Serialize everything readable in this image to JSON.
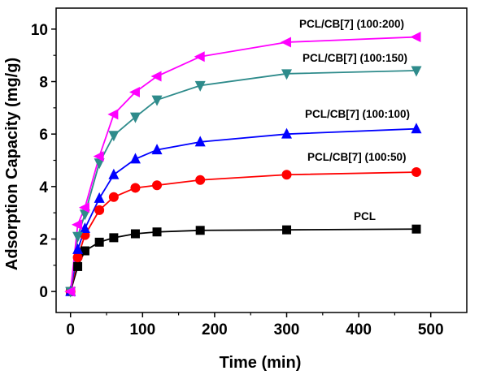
{
  "chart_data": {
    "type": "line",
    "xlabel": "Time (min)",
    "ylabel": "Adsorption Capacity (mg/g)",
    "xlim": [
      -20,
      550
    ],
    "ylim": [
      -0.8,
      10.8
    ],
    "xticks": [
      0,
      100,
      200,
      300,
      400,
      500
    ],
    "yticks": [
      0,
      2,
      4,
      6,
      8,
      10
    ],
    "x": [
      0,
      10,
      20,
      40,
      60,
      90,
      120,
      180,
      300,
      480
    ],
    "series": [
      {
        "name": "PCL",
        "label": "PCL",
        "color": "#000000",
        "marker": "square",
        "values": [
          0,
          0.95,
          1.55,
          1.88,
          2.05,
          2.2,
          2.27,
          2.33,
          2.35,
          2.38
        ]
      },
      {
        "name": "PCL/CB[7] (100:50)",
        "label": "PCL/CB[7] (100:50)",
        "color": "#ff0000",
        "marker": "circle",
        "values": [
          0,
          1.3,
          2.15,
          3.1,
          3.6,
          3.95,
          4.05,
          4.25,
          4.45,
          4.55
        ]
      },
      {
        "name": "PCL/CB[7] (100:100)",
        "label": "PCL/CB[7] (100:100)",
        "color": "#0000ff",
        "marker": "triangle-up",
        "values": [
          0,
          1.6,
          2.4,
          3.55,
          4.45,
          5.05,
          5.4,
          5.7,
          6.0,
          6.2
        ]
      },
      {
        "name": "PCL/CB[7] (100:150)",
        "label": "PCL/CB[7] (100:150)",
        "color": "#2e8b8b",
        "marker": "triangle-down",
        "values": [
          0,
          2.1,
          2.95,
          4.9,
          5.95,
          6.65,
          7.3,
          7.85,
          8.3,
          8.42
        ]
      },
      {
        "name": "PCL/CB[7] (100:200)",
        "label": "PCL/CB[7] (100:200)",
        "color": "#ff00ff",
        "marker": "triangle-left",
        "values": [
          0,
          2.55,
          3.2,
          5.15,
          6.75,
          7.6,
          8.2,
          8.95,
          9.5,
          9.7
        ]
      }
    ]
  }
}
